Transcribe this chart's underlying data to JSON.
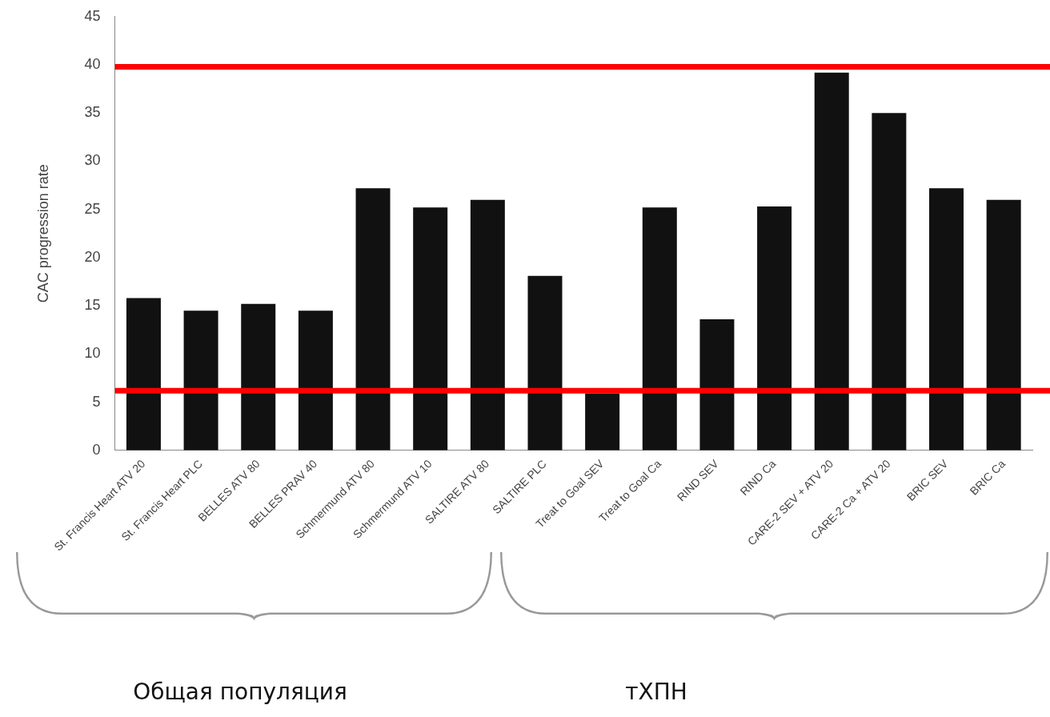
{
  "chart_data": {
    "type": "bar",
    "ylabel": "CAC progression rate",
    "categories": [
      "St. Francis Heart ATV 20",
      "St. Francis Heart PLC",
      "BELLES ATV 80",
      "BELLES PRAV 40",
      "Schmermund ATV 80",
      "Schmermund ATV 10",
      "SALTIRE ATV 80",
      "SALTIRE PLC",
      "Treat to Goal SEV",
      "Treat to Goal Ca",
      "RIND SEV",
      "RIND Ca",
      "CARE-2 SEV + ATV 20",
      "CARE-2 Ca + ATV 20",
      "BRIC SEV",
      "BRIC Ca"
    ],
    "values": [
      15.8,
      14.5,
      15.2,
      14.5,
      27.2,
      25.2,
      26,
      18.1,
      5.9,
      25.2,
      13.6,
      25.3,
      39.2,
      35,
      27.2,
      26
    ],
    "color": "#111111",
    "ylim": [
      0,
      45
    ],
    "yticks": [
      0,
      5,
      10,
      15,
      20,
      25,
      30,
      35,
      40,
      45
    ],
    "grid": false,
    "legend": false,
    "ref_lines": [
      {
        "axis": "y",
        "value": 39.8,
        "color": "#ff0000"
      },
      {
        "axis": "y",
        "value": 6.2,
        "color": "#ff0000"
      }
    ],
    "annotations": [
      "Общая популяция",
      "тХПН"
    ]
  }
}
